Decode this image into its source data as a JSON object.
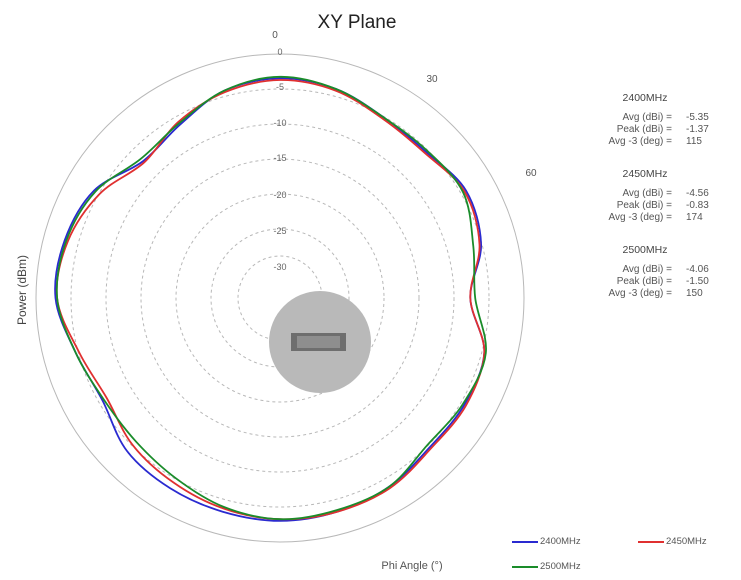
{
  "chart_data": {
    "type": "polar",
    "title": "XY Plane",
    "ylabel": "Power (dBm)",
    "xlabel": "Phi Angle (°)",
    "angle_labels": [
      "0",
      "30",
      "60"
    ],
    "radial_axis": {
      "min": -30,
      "max": 0
    },
    "radial_tick_labels": [
      "0",
      "-5",
      "-10",
      "-15",
      "-20",
      "-25",
      "-30"
    ],
    "radial_ticks": [
      0,
      -5,
      -10,
      -15,
      -20,
      -25,
      -30
    ],
    "angles_deg": [
      0,
      15,
      30,
      45,
      60,
      75,
      90,
      105,
      120,
      135,
      150,
      165,
      180,
      195,
      210,
      225,
      240,
      255,
      270,
      285,
      300,
      315,
      330,
      345
    ],
    "series": [
      {
        "name": "2400MHz",
        "color": "#2a2ad0",
        "values": [
          -3,
          -3.4,
          -4.4,
          -4.6,
          -3.6,
          -4.4,
          -6.6,
          -4.0,
          -3.8,
          -4.0,
          -3.2,
          -2.8,
          -2.6,
          -2.8,
          -3.0,
          -3.4,
          -4.8,
          -4.0,
          -2.4,
          -2.6,
          -3.6,
          -6.2,
          -5.4,
          -3.6
        ]
      },
      {
        "name": "2450MHz",
        "color": "#e03030",
        "values": [
          -3.2,
          -3.6,
          -4.6,
          -4.8,
          -3.8,
          -4.6,
          -6.6,
          -4.0,
          -3.6,
          -3.8,
          -3.0,
          -2.8,
          -2.8,
          -3.2,
          -3.8,
          -4.4,
          -5.4,
          -4.4,
          -2.6,
          -3.0,
          -4.4,
          -6.4,
          -5.0,
          -3.8
        ]
      },
      {
        "name": "2500MHz",
        "color": "#1a8c2a",
        "values": [
          -2.8,
          -3.4,
          -4.4,
          -4.4,
          -4.0,
          -5.4,
          -6.0,
          -3.8,
          -4.0,
          -4.4,
          -3.2,
          -3.0,
          -2.8,
          -3.4,
          -4.4,
          -5.0,
          -5.0,
          -4.0,
          -2.6,
          -2.8,
          -3.8,
          -5.8,
          -5.2,
          -3.6
        ]
      }
    ]
  },
  "stats": [
    {
      "freq": "2400MHz",
      "rows": [
        {
          "label": "Avg (dBi) =",
          "value": "-5.35"
        },
        {
          "label": "Peak (dBi) =",
          "value": "-1.37"
        },
        {
          "label": "Avg -3 (deg) =",
          "value": "115"
        }
      ]
    },
    {
      "freq": "2450MHz",
      "rows": [
        {
          "label": "Avg (dBi) =",
          "value": "-4.56"
        },
        {
          "label": "Peak (dBi) =",
          "value": "-0.83"
        },
        {
          "label": "Avg -3 (deg) =",
          "value": "174"
        }
      ]
    },
    {
      "freq": "2500MHz",
      "rows": [
        {
          "label": "Avg (dBi) =",
          "value": "-4.06"
        },
        {
          "label": "Peak (dBi) =",
          "value": "-1.50"
        },
        {
          "label": "Avg -3 (deg) =",
          "value": "150"
        }
      ]
    }
  ],
  "device_image": {
    "description": "gray disc with module chip"
  }
}
